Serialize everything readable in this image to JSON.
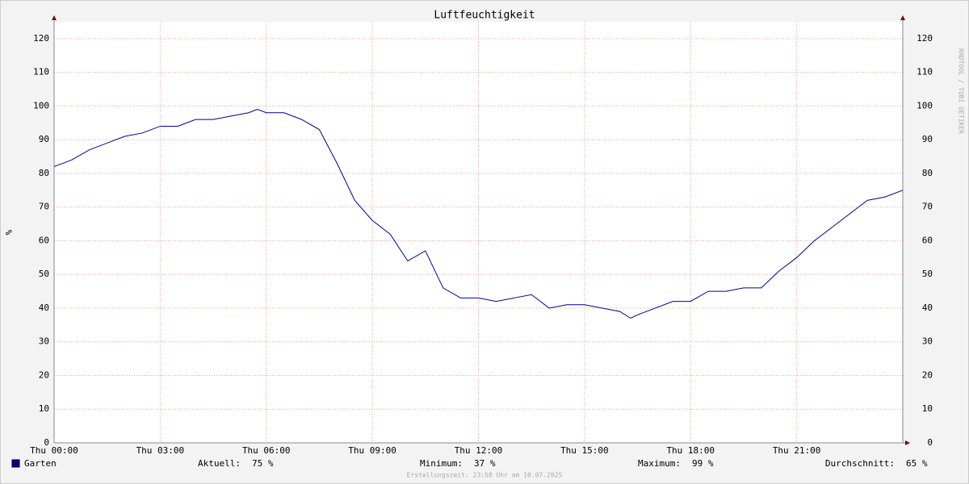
{
  "chart_data": {
    "type": "line",
    "title": "Luftfeuchtigkeit",
    "y_label": "%",
    "side_text": "RRDTOOL / TOBI OETIKER",
    "footer": "Erstellungszeit: 23:58 Uhr am 10.07.2025",
    "x": [
      0,
      0.5,
      1,
      1.5,
      2,
      2.5,
      3,
      3.5,
      4,
      4.5,
      5,
      5.5,
      5.75,
      6,
      6.5,
      7,
      7.5,
      8,
      8.5,
      9,
      9.5,
      10,
      10.5,
      11,
      11.5,
      12,
      12.5,
      13,
      13.5,
      14,
      14.5,
      15,
      15.5,
      16,
      16.3,
      16.5,
      17,
      17.5,
      18,
      18.5,
      19,
      19.5,
      20,
      20.5,
      21,
      21.5,
      22,
      22.5,
      23,
      23.5,
      24
    ],
    "series": [
      {
        "name": "Garten",
        "color": "#000099",
        "values": [
          82,
          84,
          87,
          89,
          91,
          92,
          94,
          94,
          96,
          96,
          97,
          98,
          99,
          98,
          98,
          96,
          93,
          83,
          72,
          66,
          62,
          54,
          57,
          46,
          43,
          43,
          42,
          43,
          44,
          40,
          41,
          41,
          40,
          39,
          37,
          38,
          40,
          42,
          42,
          45,
          45,
          46,
          46,
          51,
          55,
          60,
          64,
          68,
          72,
          73,
          75
        ]
      }
    ],
    "xlim": [
      0,
      24
    ],
    "xticks": [
      {
        "value": 0,
        "label": "Thu 00:00"
      },
      {
        "value": 3,
        "label": "Thu 03:00"
      },
      {
        "value": 6,
        "label": "Thu 06:00"
      },
      {
        "value": 9,
        "label": "Thu 09:00"
      },
      {
        "value": 12,
        "label": "Thu 12:00"
      },
      {
        "value": 15,
        "label": "Thu 15:00"
      },
      {
        "value": 18,
        "label": "Thu 18:00"
      },
      {
        "value": 21,
        "label": "Thu 21:00"
      }
    ],
    "ylim": [
      0,
      125
    ],
    "yticks": [
      0,
      10,
      20,
      30,
      40,
      50,
      60,
      70,
      80,
      90,
      100,
      110,
      120
    ],
    "grid": true,
    "stats": [
      {
        "label": "Aktuell:",
        "value": 75,
        "value_label": "75 %"
      },
      {
        "label": "Minimum:",
        "value": 37,
        "value_label": "37 %"
      },
      {
        "label": "Maximum:",
        "value": 99,
        "value_label": "99 %"
      },
      {
        "label": "Durchschnitt:",
        "value": 65,
        "value_label": "65 %"
      }
    ]
  }
}
